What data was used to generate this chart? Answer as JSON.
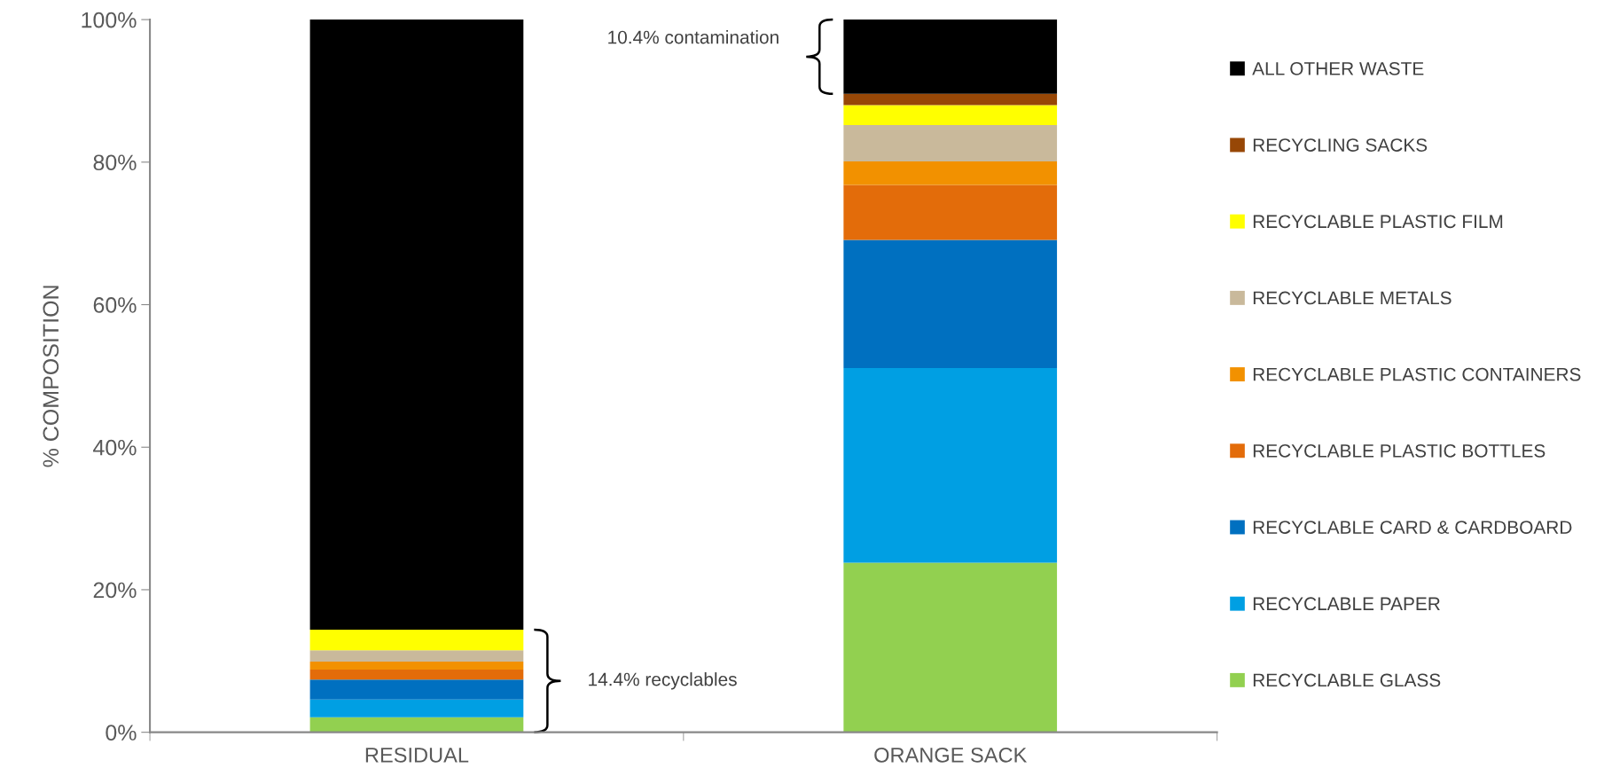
{
  "chart_data": {
    "type": "bar",
    "stacked": true,
    "ylabel": "% COMPOSITION",
    "categories": [
      "RESIDUAL",
      "ORANGE SACK"
    ],
    "series": [
      {
        "name": "RECYCLABLE GLASS",
        "color": "#92d050",
        "values": [
          2.1,
          23.8
        ]
      },
      {
        "name": "RECYCLABLE PAPER",
        "color": "#009fe3",
        "values": [
          2.5,
          27.3
        ]
      },
      {
        "name": "RECYCLABLE CARD & CARDBOARD",
        "color": "#0070c0",
        "values": [
          2.8,
          18.0
        ]
      },
      {
        "name": "RECYCLABLE PLASTIC BOTTLES",
        "color": "#e36c0a",
        "values": [
          1.4,
          7.7
        ]
      },
      {
        "name": "RECYCLABLE PLASTIC CONTAINERS",
        "color": "#f29100",
        "values": [
          1.1,
          3.3
        ]
      },
      {
        "name": "RECYCLABLE METALS",
        "color": "#c9b99b",
        "values": [
          1.6,
          5.1
        ]
      },
      {
        "name": "RECYCLABLE PLASTIC FILM",
        "color": "#ffff00",
        "values": [
          2.9,
          2.8
        ]
      },
      {
        "name": "RECYCLING SACKS",
        "color": "#974706",
        "values": [
          0,
          1.6
        ]
      },
      {
        "name": "ALL OTHER WASTE",
        "color": "#000000",
        "values": [
          85.6,
          10.4
        ]
      }
    ],
    "ylim": [
      0,
      100
    ],
    "yticks": [
      {
        "value": 0,
        "label": "0%"
      },
      {
        "value": 20,
        "label": "20%"
      },
      {
        "value": 40,
        "label": "40%"
      },
      {
        "value": 60,
        "label": "60%"
      },
      {
        "value": 80,
        "label": "80%"
      },
      {
        "value": 100,
        "label": "100%"
      }
    ],
    "grid": false,
    "legend": "right",
    "annotations": [
      "14.4% recyclables",
      "10.4% contamination"
    ]
  }
}
